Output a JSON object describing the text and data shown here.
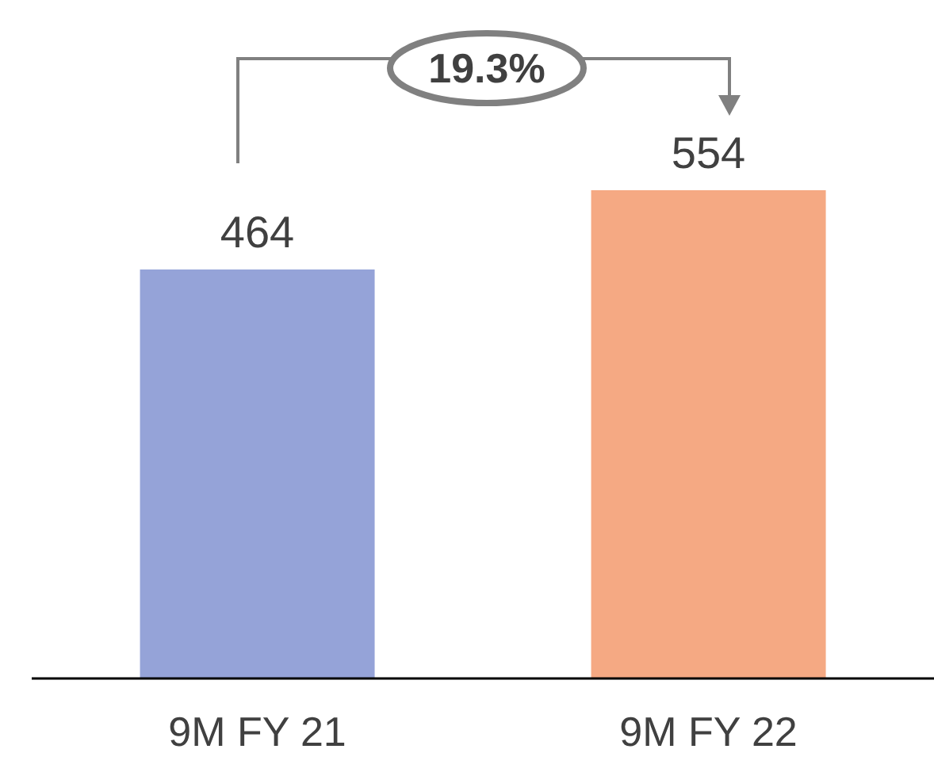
{
  "chart_data": {
    "type": "bar",
    "categories": [
      "9M FY 21",
      "9M FY 22"
    ],
    "values": [
      464,
      554
    ],
    "colors": [
      "#95a3d8",
      "#f5a983"
    ],
    "data_labels": true,
    "annotations": [
      "19.3%"
    ]
  }
}
